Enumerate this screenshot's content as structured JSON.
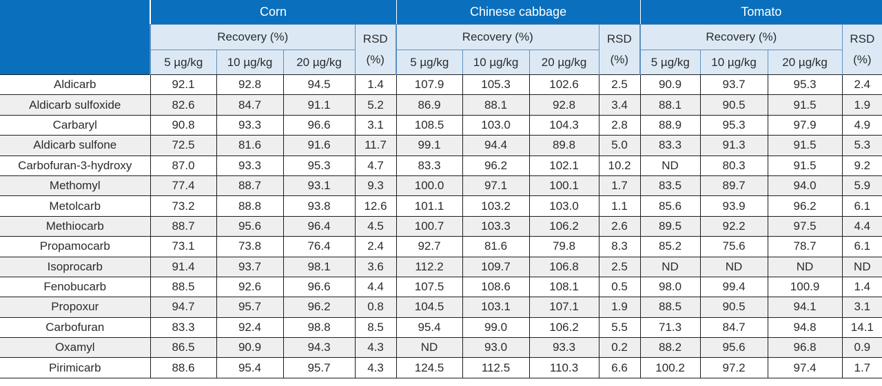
{
  "header": {
    "groups": [
      "Corn",
      "Chinese cabbage",
      "Tomato"
    ],
    "recovery_label": "Recovery (%)",
    "rsd_label_line1": "RSD",
    "rsd_label_line2": "(%)",
    "levels": [
      "5 µg/kg",
      "10 µg/kg",
      "20 µg/kg"
    ]
  },
  "rows": [
    {
      "name": "Aldicarb",
      "values": [
        "92.1",
        "92.8",
        "94.5",
        "1.4",
        "107.9",
        "105.3",
        "102.6",
        "2.5",
        "90.9",
        "93.7",
        "95.3",
        "2.4"
      ]
    },
    {
      "name": "Aldicarb sulfoxide",
      "values": [
        "82.6",
        "84.7",
        "91.1",
        "5.2",
        "86.9",
        "88.1",
        "92.8",
        "3.4",
        "88.1",
        "90.5",
        "91.5",
        "1.9"
      ]
    },
    {
      "name": "Carbaryl",
      "values": [
        "90.8",
        "93.3",
        "96.6",
        "3.1",
        "108.5",
        "103.0",
        "104.3",
        "2.8",
        "88.9",
        "95.3",
        "97.9",
        "4.9"
      ]
    },
    {
      "name": "Aldicarb sulfone",
      "values": [
        "72.5",
        "81.6",
        "91.6",
        "11.7",
        "99.1",
        "94.4",
        "89.8",
        "5.0",
        "83.3",
        "91.3",
        "91.5",
        "5.3"
      ]
    },
    {
      "name": "Carbofuran-3-hydroxy",
      "values": [
        "87.0",
        "93.3",
        "95.3",
        "4.7",
        "83.3",
        "96.2",
        "102.1",
        "10.2",
        "ND",
        "80.3",
        "91.5",
        "9.2"
      ]
    },
    {
      "name": "Methomyl",
      "values": [
        "77.4",
        "88.7",
        "93.1",
        "9.3",
        "100.0",
        "97.1",
        "100.1",
        "1.7",
        "83.5",
        "89.7",
        "94.0",
        "5.9"
      ]
    },
    {
      "name": "Metolcarb",
      "values": [
        "73.2",
        "88.8",
        "93.8",
        "12.6",
        "101.1",
        "103.2",
        "103.0",
        "1.1",
        "85.6",
        "93.9",
        "96.2",
        "6.1"
      ]
    },
    {
      "name": "Methiocarb",
      "values": [
        "88.7",
        "95.6",
        "96.4",
        "4.5",
        "100.7",
        "103.3",
        "106.2",
        "2.6",
        "89.5",
        "92.2",
        "97.5",
        "4.4"
      ]
    },
    {
      "name": "Propamocarb",
      "values": [
        "73.1",
        "73.8",
        "76.4",
        "2.4",
        "92.7",
        "81.6",
        "79.8",
        "8.3",
        "85.2",
        "75.6",
        "78.7",
        "6.1"
      ]
    },
    {
      "name": "Isoprocarb",
      "values": [
        "91.4",
        "93.7",
        "98.1",
        "3.6",
        "112.2",
        "109.7",
        "106.8",
        "2.5",
        "ND",
        "ND",
        "ND",
        "ND"
      ]
    },
    {
      "name": "Fenobucarb",
      "values": [
        "88.5",
        "92.6",
        "96.6",
        "4.4",
        "107.5",
        "108.6",
        "108.1",
        "0.5",
        "98.0",
        "99.4",
        "100.9",
        "1.4"
      ]
    },
    {
      "name": "Propoxur",
      "values": [
        "94.7",
        "95.7",
        "96.2",
        "0.8",
        "104.5",
        "103.1",
        "107.1",
        "1.9",
        "88.5",
        "90.5",
        "94.1",
        "3.1"
      ]
    },
    {
      "name": "Carbofuran",
      "values": [
        "83.3",
        "92.4",
        "98.8",
        "8.5",
        "95.4",
        "99.0",
        "106.2",
        "5.5",
        "71.3",
        "84.7",
        "94.8",
        "14.1"
      ]
    },
    {
      "name": "Oxamyl",
      "values": [
        "86.5",
        "90.9",
        "94.3",
        "4.3",
        "ND",
        "93.0",
        "93.3",
        "0.2",
        "88.2",
        "95.6",
        "96.8",
        "0.9"
      ]
    },
    {
      "name": "Pirimicarb",
      "values": [
        "88.6",
        "95.4",
        "95.7",
        "4.3",
        "124.5",
        "112.5",
        "110.3",
        "6.6",
        "100.2",
        "97.2",
        "97.4",
        "1.7"
      ]
    }
  ]
}
